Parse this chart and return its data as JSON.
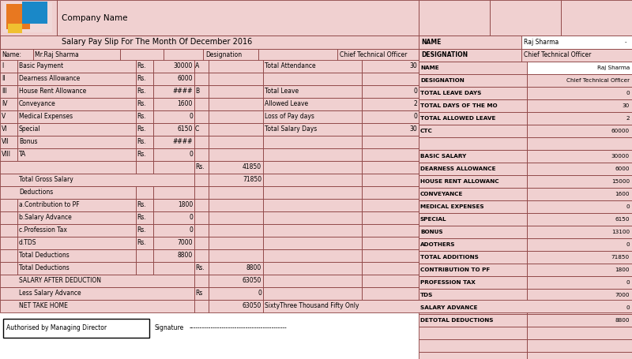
{
  "title": "Salary Pay Slip For The Month Of December 2016",
  "company_name": "Company Name",
  "bg_color": "#f0d0d0",
  "white": "#ffffff",
  "border_color": "#8B4040",
  "left_rows": [
    {
      "roman": "I",
      "label": "Basic Payment",
      "rs": "Rs.",
      "amount": "30000"
    },
    {
      "roman": "II",
      "label": "Dearness Allowance",
      "rs": "Rs.",
      "amount": "6000"
    },
    {
      "roman": "III",
      "label": "House Rent Allowance",
      "rs": "Rs.",
      "amount": "####"
    },
    {
      "roman": "IV",
      "label": "Conveyance",
      "rs": "Rs.",
      "amount": "1600"
    },
    {
      "roman": "V",
      "label": "Medical Expenses",
      "rs": "Rs.",
      "amount": "0"
    },
    {
      "roman": "VI",
      "label": "Special",
      "rs": "Rs.",
      "amount": "6150"
    },
    {
      "roman": "VII",
      "label": "Bonus",
      "rs": "Rs.",
      "amount": "####"
    },
    {
      "roman": "VIII",
      "label": "TA",
      "rs": "Rs.",
      "amount": "0"
    }
  ],
  "att_rows": [
    {
      "sec": "A",
      "label": "Total Attendance",
      "val": "30"
    },
    {
      "sec": "",
      "label": "",
      "val": ""
    },
    {
      "sec": "B",
      "label": "Total Leave",
      "val": "0"
    },
    {
      "sec": "",
      "label": "Allowed Leave",
      "val": "2"
    },
    {
      "sec": "",
      "label": "Loss of Pay days",
      "val": "0"
    },
    {
      "sec": "C",
      "label": "Total Salary Days",
      "val": "30"
    },
    {
      "sec": "",
      "label": "",
      "val": ""
    },
    {
      "sec": "",
      "label": "",
      "val": ""
    }
  ],
  "ded_rows": [
    {
      "label": "a.Contribution to PF",
      "rs": "Rs.",
      "amount": "1800"
    },
    {
      "label": "b.Salary Advance",
      "rs": "Rs.",
      "amount": "0"
    },
    {
      "label": "c.Profession Tax",
      "rs": "Rs.",
      "amount": "0"
    },
    {
      "label": "d.TDS",
      "rs": "Rs.",
      "amount": "7000"
    }
  ],
  "right_rows": [
    {
      "label": "NAME",
      "val": "Raj Sharma",
      "bold": true,
      "white_val": true
    },
    {
      "label": "DESIGNATION",
      "val": "Chief Technical Officer",
      "bold": true,
      "white_val": false
    },
    {
      "label": "TOTAL LEAVE DAYS",
      "val": "0",
      "bold": true,
      "white_val": false
    },
    {
      "label": "TOTAL DAYS OF THE MO",
      "val": "30",
      "bold": true,
      "white_val": false
    },
    {
      "label": "TOTAL ALLOWED LEAVE",
      "val": "2",
      "bold": true,
      "white_val": false
    },
    {
      "label": "CTC",
      "val": "60000",
      "bold": true,
      "white_val": false
    },
    {
      "label": "",
      "val": "",
      "bold": false,
      "white_val": false
    },
    {
      "label": "BASIC SALARY",
      "val": "30000",
      "bold": true,
      "white_val": false
    },
    {
      "label": "DEARNESS ALLOWANCE",
      "val": "6000",
      "bold": true,
      "white_val": false
    },
    {
      "label": "HOUSE RENT ALLOWANC",
      "val": "15000",
      "bold": true,
      "white_val": false
    },
    {
      "label": "CONVEYANCE",
      "val": "1600",
      "bold": true,
      "white_val": false
    },
    {
      "label": "MEDICAL EXPENSES",
      "val": "0",
      "bold": true,
      "white_val": false
    },
    {
      "label": "SPECIAL",
      "val": "6150",
      "bold": true,
      "white_val": false
    },
    {
      "label": "BONUS",
      "val": "13100",
      "bold": true,
      "white_val": false
    },
    {
      "label": "ADOTHERS",
      "val": "0",
      "bold": true,
      "white_val": false
    },
    {
      "label": "TOTAL ADDITIONS",
      "val": "71850",
      "bold": true,
      "white_val": false
    },
    {
      "label": "CONTRIBUTION TO PF",
      "val": "1800",
      "bold": true,
      "white_val": false
    },
    {
      "label": "PROFESSION TAX",
      "val": "0",
      "bold": true,
      "white_val": false
    },
    {
      "label": "TDS",
      "val": "7000",
      "bold": true,
      "white_val": false
    },
    {
      "label": "SALARY ADVANCE",
      "val": "0",
      "bold": true,
      "white_val": false
    },
    {
      "label": "DETOTAL DEDUCTIONS",
      "val": "8800",
      "bold": true,
      "white_val": false
    },
    {
      "label": "",
      "val": "",
      "bold": false,
      "white_val": false
    },
    {
      "label": "",
      "val": "",
      "bold": false,
      "white_val": false
    },
    {
      "label": "",
      "val": "",
      "bold": false,
      "white_val": false
    }
  ],
  "footer_auth": "Authorised by Managing Director",
  "footer_sig": "Signature",
  "footer_line": "---------------------------------------------"
}
